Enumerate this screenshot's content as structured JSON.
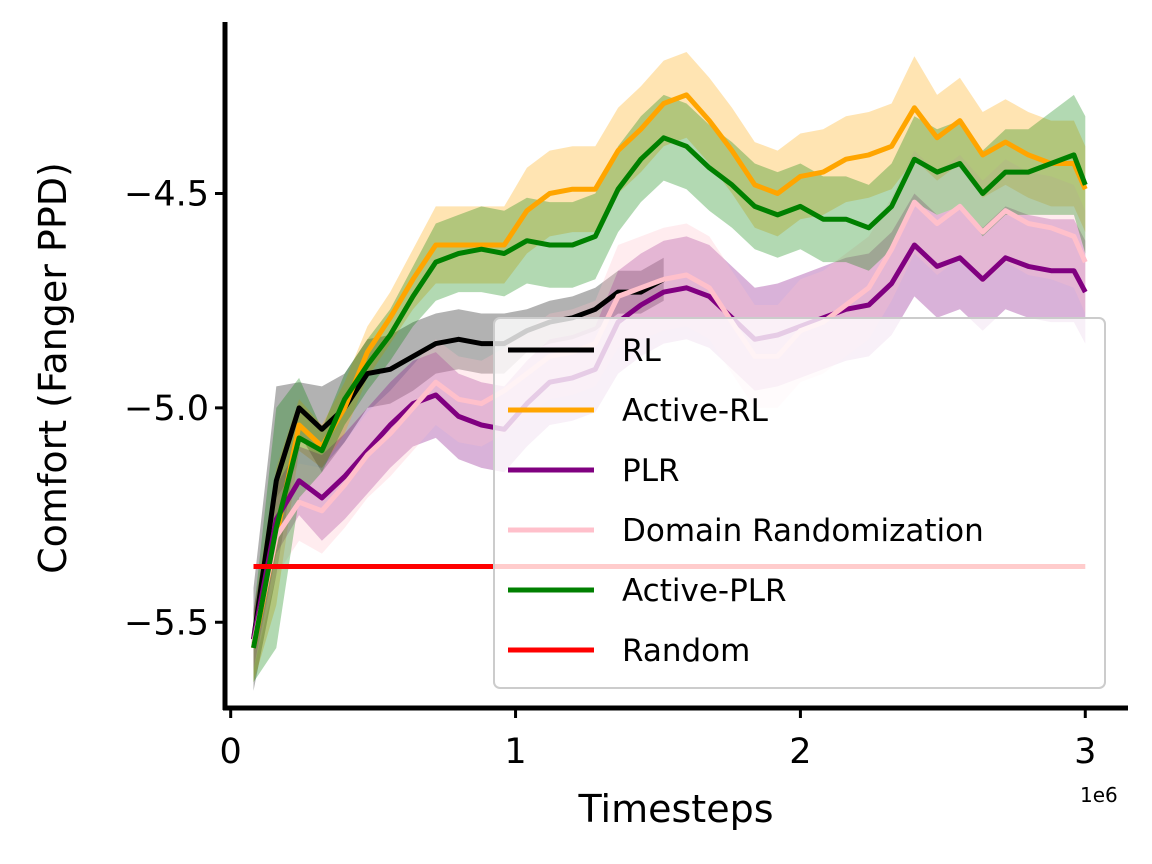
{
  "chart_data": {
    "type": "line",
    "title": "",
    "xlabel": "Timesteps",
    "ylabel": "Comfort (Fanger PPD)",
    "x_offset_label": "1e6",
    "xlim": [
      -0.02,
      3.15
    ],
    "ylim": [
      -5.7,
      -4.1
    ],
    "x_ticks": [
      {
        "value": 0,
        "label": "0"
      },
      {
        "value": 1,
        "label": "1"
      },
      {
        "value": 2,
        "label": "2"
      },
      {
        "value": 3,
        "label": "3"
      }
    ],
    "y_ticks": [
      {
        "value": -5.5,
        "label": "−5.5"
      },
      {
        "value": -5.0,
        "label": "−5.0"
      },
      {
        "value": -4.5,
        "label": "−4.5"
      }
    ],
    "grid": false,
    "legend_position": "lower-right",
    "series": [
      {
        "name": "RL",
        "color": "#000000",
        "x": [
          0.08,
          0.16,
          0.24,
          0.32,
          0.4,
          0.48,
          0.56,
          0.64,
          0.72,
          0.8,
          0.88,
          0.96,
          1.04,
          1.12,
          1.2,
          1.28,
          1.36,
          1.44,
          1.52
        ],
        "y": [
          -5.54,
          -5.17,
          -5.0,
          -5.05,
          -5.0,
          -4.92,
          -4.91,
          -4.88,
          -4.85,
          -4.84,
          -4.85,
          -4.85,
          -4.82,
          -4.8,
          -4.79,
          -4.77,
          -4.73,
          -4.73,
          -4.7
        ],
        "band": [
          0.12,
          0.22,
          0.06,
          0.1,
          0.08,
          0.08,
          0.08,
          0.08,
          0.07,
          0.07,
          0.07,
          0.07,
          0.05,
          0.05,
          0.05,
          0.05,
          0.05,
          0.05,
          0.05
        ]
      },
      {
        "name": "Active-RL",
        "color": "#ffa500",
        "x": [
          0.08,
          0.16,
          0.24,
          0.32,
          0.4,
          0.48,
          0.56,
          0.64,
          0.72,
          0.8,
          0.88,
          0.96,
          1.04,
          1.12,
          1.2,
          1.28,
          1.36,
          1.44,
          1.52,
          1.6,
          1.68,
          1.76,
          1.84,
          1.92,
          2.0,
          2.08,
          2.16,
          2.24,
          2.32,
          2.4,
          2.48,
          2.56,
          2.64,
          2.72,
          2.8,
          2.88,
          2.96,
          3.0
        ],
        "y": [
          -5.56,
          -5.3,
          -5.04,
          -5.09,
          -5.0,
          -4.87,
          -4.79,
          -4.7,
          -4.62,
          -4.62,
          -4.62,
          -4.62,
          -4.54,
          -4.5,
          -4.49,
          -4.49,
          -4.4,
          -4.35,
          -4.29,
          -4.27,
          -4.33,
          -4.4,
          -4.48,
          -4.5,
          -4.46,
          -4.45,
          -4.42,
          -4.41,
          -4.39,
          -4.3,
          -4.37,
          -4.33,
          -4.41,
          -4.38,
          -4.41,
          -4.43,
          -4.43,
          -4.49
        ],
        "band": [
          0.08,
          0.16,
          0.06,
          0.05,
          0.06,
          0.06,
          0.06,
          0.07,
          0.09,
          0.09,
          0.09,
          0.09,
          0.1,
          0.1,
          0.1,
          0.1,
          0.1,
          0.1,
          0.1,
          0.1,
          0.1,
          0.1,
          0.1,
          0.1,
          0.1,
          0.1,
          0.1,
          0.1,
          0.1,
          0.12,
          0.1,
          0.1,
          0.1,
          0.1,
          0.1,
          0.1,
          0.1,
          0.1
        ]
      },
      {
        "name": "PLR",
        "color": "#800080",
        "x": [
          0.08,
          0.16,
          0.24,
          0.32,
          0.4,
          0.48,
          0.56,
          0.64,
          0.72,
          0.8,
          0.88,
          0.96,
          1.04,
          1.12,
          1.2,
          1.28,
          1.36,
          1.44,
          1.52,
          1.6,
          1.68,
          1.76,
          1.84,
          1.92,
          2.0,
          2.08,
          2.16,
          2.24,
          2.32,
          2.4,
          2.48,
          2.56,
          2.64,
          2.72,
          2.8,
          2.88,
          2.96,
          3.0
        ],
        "y": [
          -5.54,
          -5.26,
          -5.17,
          -5.21,
          -5.16,
          -5.1,
          -5.04,
          -4.99,
          -4.97,
          -5.02,
          -5.04,
          -5.05,
          -4.99,
          -4.94,
          -4.93,
          -4.91,
          -4.8,
          -4.76,
          -4.73,
          -4.72,
          -4.74,
          -4.79,
          -4.84,
          -4.83,
          -4.81,
          -4.79,
          -4.77,
          -4.76,
          -4.71,
          -4.62,
          -4.67,
          -4.65,
          -4.7,
          -4.65,
          -4.67,
          -4.68,
          -4.68,
          -4.73
        ],
        "band": [
          0.07,
          0.08,
          0.08,
          0.1,
          0.1,
          0.1,
          0.1,
          0.1,
          0.1,
          0.1,
          0.1,
          0.1,
          0.1,
          0.1,
          0.1,
          0.1,
          0.12,
          0.12,
          0.12,
          0.12,
          0.12,
          0.12,
          0.12,
          0.12,
          0.12,
          0.12,
          0.12,
          0.12,
          0.12,
          0.12,
          0.12,
          0.12,
          0.12,
          0.12,
          0.12,
          0.12,
          0.12,
          0.12
        ]
      },
      {
        "name": "Domain Randomization",
        "color": "#ffc0cb",
        "x": [
          0.08,
          0.16,
          0.24,
          0.32,
          0.4,
          0.48,
          0.56,
          0.64,
          0.72,
          0.8,
          0.88,
          0.96,
          1.04,
          1.12,
          1.2,
          1.28,
          1.36,
          1.44,
          1.52,
          1.6,
          1.68,
          1.76,
          1.84,
          1.92,
          2.0,
          2.08,
          2.16,
          2.24,
          2.32,
          2.4,
          2.48,
          2.56,
          2.64,
          2.72,
          2.8,
          2.88,
          2.96,
          3.0
        ],
        "y": [
          -5.55,
          -5.3,
          -5.22,
          -5.24,
          -5.18,
          -5.11,
          -5.06,
          -5.0,
          -4.94,
          -4.98,
          -4.99,
          -4.96,
          -4.92,
          -4.88,
          -4.87,
          -4.85,
          -4.74,
          -4.72,
          -4.7,
          -4.69,
          -4.72,
          -4.8,
          -4.88,
          -4.88,
          -4.82,
          -4.8,
          -4.76,
          -4.72,
          -4.63,
          -4.52,
          -4.57,
          -4.53,
          -4.59,
          -4.54,
          -4.57,
          -4.58,
          -4.6,
          -4.66
        ],
        "band": [
          0.06,
          0.09,
          0.09,
          0.1,
          0.1,
          0.1,
          0.1,
          0.1,
          0.1,
          0.1,
          0.1,
          0.1,
          0.1,
          0.1,
          0.1,
          0.1,
          0.12,
          0.12,
          0.12,
          0.12,
          0.12,
          0.12,
          0.12,
          0.12,
          0.12,
          0.12,
          0.12,
          0.12,
          0.12,
          0.12,
          0.12,
          0.12,
          0.12,
          0.12,
          0.12,
          0.12,
          0.12,
          0.12
        ]
      },
      {
        "name": "Active-PLR",
        "color": "#008000",
        "x": [
          0.08,
          0.16,
          0.24,
          0.32,
          0.4,
          0.48,
          0.56,
          0.64,
          0.72,
          0.8,
          0.88,
          0.96,
          1.04,
          1.12,
          1.2,
          1.28,
          1.36,
          1.44,
          1.52,
          1.6,
          1.68,
          1.76,
          1.84,
          1.92,
          2.0,
          2.08,
          2.16,
          2.24,
          2.32,
          2.4,
          2.48,
          2.56,
          2.64,
          2.72,
          2.8,
          2.88,
          2.96,
          3.0
        ],
        "y": [
          -5.56,
          -5.28,
          -5.07,
          -5.1,
          -4.98,
          -4.9,
          -4.83,
          -4.74,
          -4.66,
          -4.64,
          -4.63,
          -4.64,
          -4.61,
          -4.62,
          -4.62,
          -4.6,
          -4.49,
          -4.42,
          -4.37,
          -4.39,
          -4.44,
          -4.48,
          -4.53,
          -4.55,
          -4.53,
          -4.56,
          -4.56,
          -4.58,
          -4.53,
          -4.42,
          -4.45,
          -4.43,
          -4.5,
          -4.45,
          -4.45,
          -4.43,
          -4.41,
          -4.48
        ],
        "band": [
          0.08,
          0.28,
          0.14,
          0.05,
          0.06,
          0.06,
          0.06,
          0.07,
          0.09,
          0.09,
          0.1,
          0.1,
          0.1,
          0.1,
          0.1,
          0.1,
          0.1,
          0.1,
          0.1,
          0.1,
          0.1,
          0.1,
          0.1,
          0.1,
          0.1,
          0.1,
          0.1,
          0.1,
          0.1,
          0.1,
          0.1,
          0.1,
          0.1,
          0.1,
          0.1,
          0.12,
          0.14,
          0.16
        ]
      },
      {
        "name": "Random",
        "color": "#ff0000",
        "x": [
          0.08,
          3.0
        ],
        "y": [
          -5.37,
          -5.37
        ],
        "band": null
      }
    ]
  }
}
